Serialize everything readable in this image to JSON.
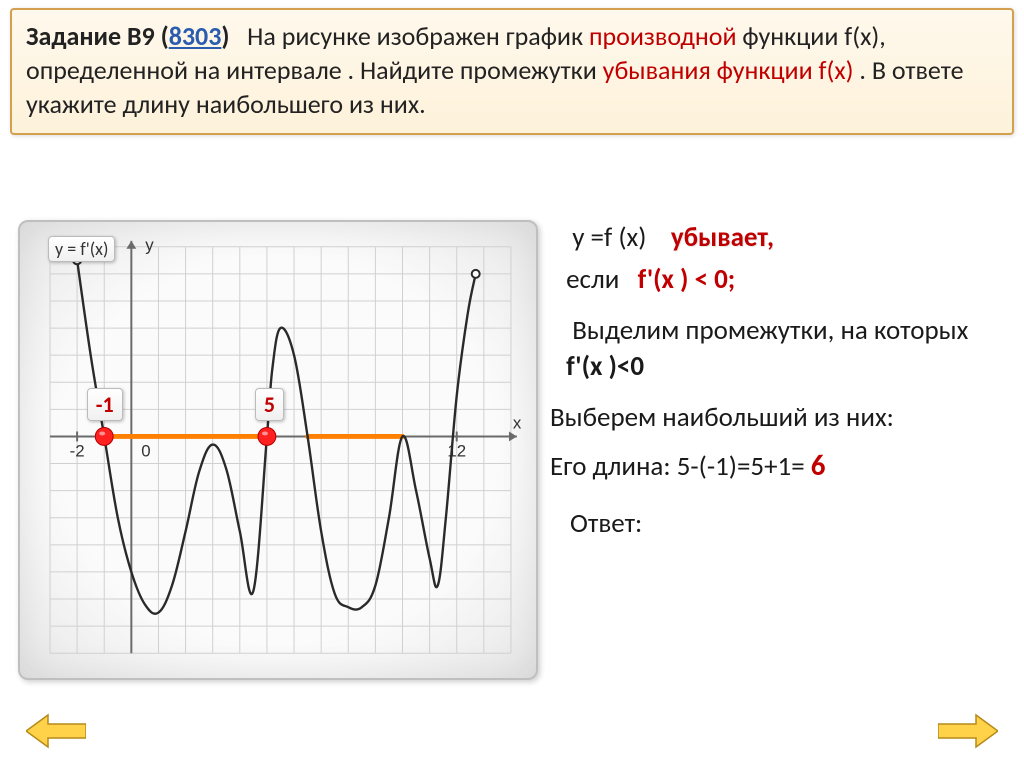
{
  "task": {
    "label_prefix": "Задание B9 (",
    "link_text": "8303",
    "label_suffix": ")",
    "text_before_red1": "На рисунке изображен график ",
    "red1": "производной",
    "text_mid1": " функции f(x), определенной на интервале . Найдите промежутки ",
    "red2": "убывания функции f(x)",
    "text_after": " . В ответе укажите длину наибольшего из них."
  },
  "explain": {
    "row1_left": "y =f (x)",
    "row1_right": "убывает,",
    "row2_left": "если",
    "row2_right": "f'(x ) < 0;",
    "row3": "Выделим промежутки, на которых",
    "row3_bold": "f'(x )<0",
    "row4": "Выберем наибольший из них:",
    "row5_left": "Его длина:  5-(-1)=5+1=",
    "row5_ans": "6",
    "row6": "Ответ:"
  },
  "chart": {
    "xlim": [
      -3,
      14
    ],
    "ylim": [
      -8,
      7
    ],
    "grid_color": "#d0d0d0",
    "axis_color": "#6a6a6a",
    "curve_color": "#2a2a2a",
    "highlight_color": "#ff7f00",
    "marker_fill": "#ff2020",
    "tick_neg2": "-2",
    "tick_0": "0",
    "tick_12": "12",
    "axis_y_label": "y",
    "axis_x_label": "x",
    "fn_badge": "y = f'(x)",
    "marker_a_label": "-1",
    "marker_b_label": "5",
    "marker_a_x": -1,
    "marker_b_x": 5,
    "curve_points": [
      [
        -2,
        6.5
      ],
      [
        -1.5,
        3.0
      ],
      [
        -1,
        0
      ],
      [
        -0.5,
        -3
      ],
      [
        0,
        -5
      ],
      [
        0.5,
        -6.2
      ],
      [
        1,
        -6.5
      ],
      [
        1.5,
        -5.5
      ],
      [
        2,
        -3.5
      ],
      [
        2.5,
        -1.3
      ],
      [
        3,
        -0.3
      ],
      [
        3.5,
        -1.2
      ],
      [
        4,
        -3.5
      ],
      [
        4.5,
        -5.7
      ],
      [
        5,
        0
      ],
      [
        5.2,
        2.5
      ],
      [
        5.5,
        4.0
      ],
      [
        6,
        3.0
      ],
      [
        6.5,
        0
      ],
      [
        7,
        -3.5
      ],
      [
        7.5,
        -5.8
      ],
      [
        8,
        -6.3
      ],
      [
        8.5,
        -6.3
      ],
      [
        9,
        -5.5
      ],
      [
        9.5,
        -3.0
      ],
      [
        10,
        0
      ],
      [
        10.5,
        -2.0
      ],
      [
        11,
        -4.5
      ],
      [
        11.3,
        -5.5
      ],
      [
        11.6,
        -3.0
      ],
      [
        12,
        1.5
      ],
      [
        12.4,
        4.5
      ],
      [
        12.7,
        6.0
      ]
    ],
    "second_highlight": {
      "x_start": 6.5,
      "x_end": 10
    }
  },
  "colors": {
    "task_border": "#d4a050",
    "task_bg_top": "#fff8ec",
    "task_bg_bot": "#fdf2da",
    "red": "#c00000",
    "link": "#2a5db0",
    "arrow_fill": "#ffd24a",
    "arrow_stroke": "#b58a1a"
  }
}
